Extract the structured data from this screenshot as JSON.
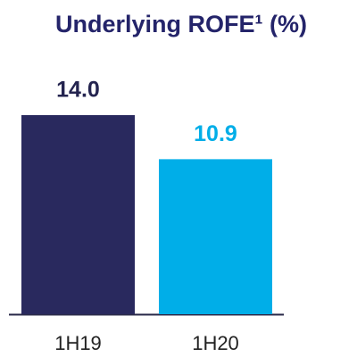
{
  "chart_data": {
    "type": "bar",
    "title": "Underlying ROFE¹ (%)",
    "categories": [
      "1H19",
      "1H20"
    ],
    "values": [
      14.0,
      10.9
    ],
    "value_labels": [
      "14.0",
      "10.9"
    ],
    "colors": [
      "#29295e",
      "#00aee8"
    ]
  }
}
